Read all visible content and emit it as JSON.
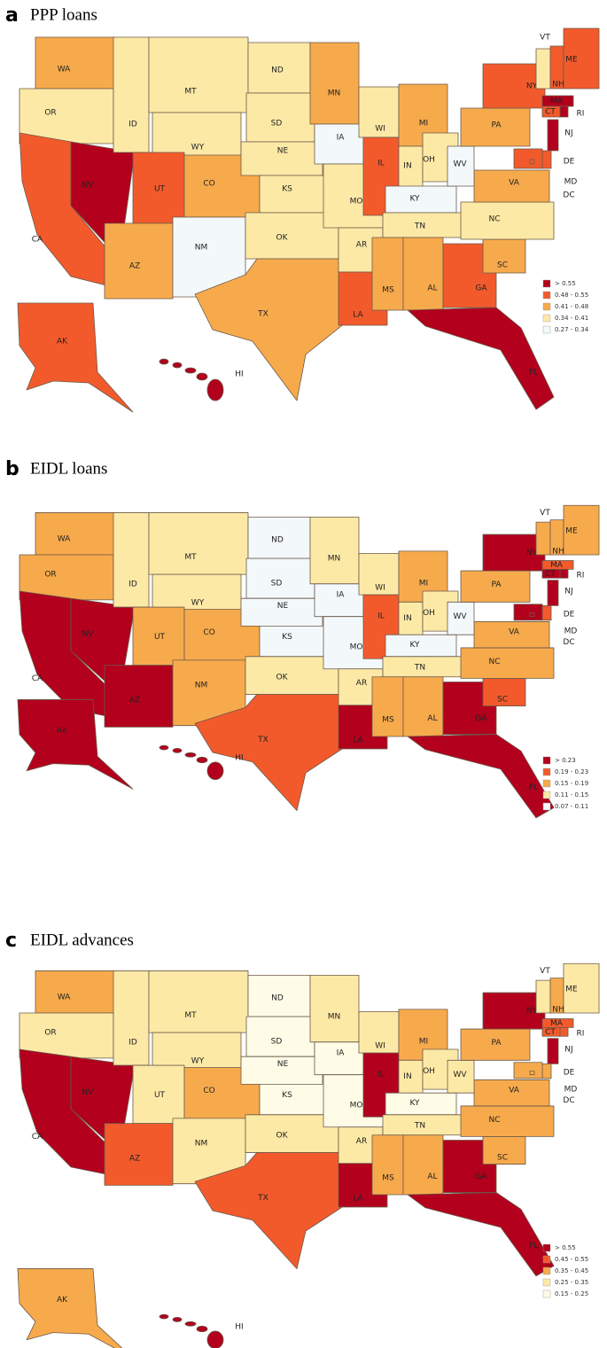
{
  "panels": [
    {
      "letter": "a",
      "title": "PPP loans",
      "legend": [
        {
          "label": "> 0.55",
          "color": "#b2001d"
        },
        {
          "label": "0.48 - 0.55",
          "color": "#f25a2c"
        },
        {
          "label": "0.41 - 0.48",
          "color": "#f7aa4c"
        },
        {
          "label": "0.34 - 0.41",
          "color": "#fde9a6"
        },
        {
          "label": "0.27 - 0.34",
          "color": "#f3f8fb"
        }
      ],
      "states": [
        {
          "label": "WA",
          "color": "#f7aa4c"
        },
        {
          "label": "OR",
          "color": "#fde9a6"
        },
        {
          "label": "CA",
          "color": "#f25a2c"
        },
        {
          "label": "NV",
          "color": "#b2001d"
        },
        {
          "label": "ID",
          "color": "#fde9a6"
        },
        {
          "label": "MT",
          "color": "#fde9a6"
        },
        {
          "label": "WY",
          "color": "#fde9a6"
        },
        {
          "label": "UT",
          "color": "#f25a2c"
        },
        {
          "label": "CO",
          "color": "#f7aa4c"
        },
        {
          "label": "AZ",
          "color": "#f7aa4c"
        },
        {
          "label": "NM",
          "color": "#f3f8fb"
        },
        {
          "label": "ND",
          "color": "#fde9a6"
        },
        {
          "label": "SD",
          "color": "#fde9a6"
        },
        {
          "label": "NE",
          "color": "#fde9a6"
        },
        {
          "label": "KS",
          "color": "#fde9a6"
        },
        {
          "label": "OK",
          "color": "#fde9a6"
        },
        {
          "label": "TX",
          "color": "#f7aa4c"
        },
        {
          "label": "MN",
          "color": "#f7aa4c"
        },
        {
          "label": "IA",
          "color": "#f3f8fb"
        },
        {
          "label": "MO",
          "color": "#fde9a6"
        },
        {
          "label": "AR",
          "color": "#fde9a6"
        },
        {
          "label": "LA",
          "color": "#f25a2c"
        },
        {
          "label": "WI",
          "color": "#fde9a6"
        },
        {
          "label": "IL",
          "color": "#f25a2c"
        },
        {
          "label": "MI",
          "color": "#f7aa4c"
        },
        {
          "label": "IN",
          "color": "#fde9a6"
        },
        {
          "label": "OH",
          "color": "#fde9a6"
        },
        {
          "label": "KY",
          "color": "#f3f8fb"
        },
        {
          "label": "TN",
          "color": "#fde9a6"
        },
        {
          "label": "MS",
          "color": "#f7aa4c"
        },
        {
          "label": "AL",
          "color": "#f7aa4c"
        },
        {
          "label": "GA",
          "color": "#f25a2c"
        },
        {
          "label": "FL",
          "color": "#b2001d"
        },
        {
          "label": "SC",
          "color": "#f7aa4c"
        },
        {
          "label": "NC",
          "color": "#fde9a6"
        },
        {
          "label": "VA",
          "color": "#f7aa4c"
        },
        {
          "label": "WV",
          "color": "#f3f8fb"
        },
        {
          "label": "PA",
          "color": "#f7aa4c"
        },
        {
          "label": "NY",
          "color": "#f25a2c"
        },
        {
          "label": "VT",
          "color": "#fde9a6"
        },
        {
          "label": "NH",
          "color": "#f25a2c"
        },
        {
          "label": "ME",
          "color": "#f25a2c"
        },
        {
          "label": "MA",
          "color": "#b2001d"
        },
        {
          "label": "CT",
          "color": "#f25a2c"
        },
        {
          "label": "RI",
          "color": "#b2001d"
        },
        {
          "label": "NJ",
          "color": "#b2001d"
        },
        {
          "label": "DE",
          "color": "#f25a2c"
        },
        {
          "label": "MD",
          "color": "#f25a2c"
        },
        {
          "label": "DC",
          "color": "#f25a2c"
        },
        {
          "label": "AK",
          "color": "#f25a2c"
        },
        {
          "label": "HI",
          "color": "#b2001d"
        }
      ]
    },
    {
      "letter": "b",
      "title": "EIDL loans",
      "legend": [
        {
          "label": "> 0.23",
          "color": "#b2001d"
        },
        {
          "label": "0.19 - 0.23",
          "color": "#f25a2c"
        },
        {
          "label": "0.15 - 0.19",
          "color": "#f7aa4c"
        },
        {
          "label": "0.11 - 0.15",
          "color": "#fde9a6"
        },
        {
          "label": "0.07 - 0.11",
          "color": "#f3f8fb"
        }
      ],
      "states": [
        {
          "label": "WA",
          "color": "#f7aa4c"
        },
        {
          "label": "OR",
          "color": "#f7aa4c"
        },
        {
          "label": "CA",
          "color": "#b2001d"
        },
        {
          "label": "NV",
          "color": "#b2001d"
        },
        {
          "label": "ID",
          "color": "#fde9a6"
        },
        {
          "label": "MT",
          "color": "#fde9a6"
        },
        {
          "label": "WY",
          "color": "#fde9a6"
        },
        {
          "label": "UT",
          "color": "#f7aa4c"
        },
        {
          "label": "CO",
          "color": "#f7aa4c"
        },
        {
          "label": "AZ",
          "color": "#b2001d"
        },
        {
          "label": "NM",
          "color": "#f7aa4c"
        },
        {
          "label": "ND",
          "color": "#f3f8fb"
        },
        {
          "label": "SD",
          "color": "#f3f8fb"
        },
        {
          "label": "NE",
          "color": "#f3f8fb"
        },
        {
          "label": "KS",
          "color": "#f3f8fb"
        },
        {
          "label": "OK",
          "color": "#fde9a6"
        },
        {
          "label": "TX",
          "color": "#f25a2c"
        },
        {
          "label": "MN",
          "color": "#fde9a6"
        },
        {
          "label": "IA",
          "color": "#f3f8fb"
        },
        {
          "label": "MO",
          "color": "#f3f8fb"
        },
        {
          "label": "AR",
          "color": "#fde9a6"
        },
        {
          "label": "LA",
          "color": "#b2001d"
        },
        {
          "label": "WI",
          "color": "#fde9a6"
        },
        {
          "label": "IL",
          "color": "#f25a2c"
        },
        {
          "label": "MI",
          "color": "#f7aa4c"
        },
        {
          "label": "IN",
          "color": "#fde9a6"
        },
        {
          "label": "OH",
          "color": "#fde9a6"
        },
        {
          "label": "KY",
          "color": "#f3f8fb"
        },
        {
          "label": "TN",
          "color": "#fde9a6"
        },
        {
          "label": "MS",
          "color": "#f7aa4c"
        },
        {
          "label": "AL",
          "color": "#f7aa4c"
        },
        {
          "label": "GA",
          "color": "#b2001d"
        },
        {
          "label": "FL",
          "color": "#b2001d"
        },
        {
          "label": "SC",
          "color": "#f25a2c"
        },
        {
          "label": "NC",
          "color": "#f7aa4c"
        },
        {
          "label": "VA",
          "color": "#f7aa4c"
        },
        {
          "label": "WV",
          "color": "#f3f8fb"
        },
        {
          "label": "PA",
          "color": "#f7aa4c"
        },
        {
          "label": "NY",
          "color": "#b2001d"
        },
        {
          "label": "VT",
          "color": "#f7aa4c"
        },
        {
          "label": "NH",
          "color": "#f7aa4c"
        },
        {
          "label": "ME",
          "color": "#f7aa4c"
        },
        {
          "label": "MA",
          "color": "#f25a2c"
        },
        {
          "label": "CT",
          "color": "#b2001d"
        },
        {
          "label": "RI",
          "color": "#b2001d"
        },
        {
          "label": "NJ",
          "color": "#b2001d"
        },
        {
          "label": "DE",
          "color": "#f25a2c"
        },
        {
          "label": "MD",
          "color": "#b2001d"
        },
        {
          "label": "DC",
          "color": "#b2001d"
        },
        {
          "label": "AK",
          "color": "#b2001d"
        },
        {
          "label": "HI",
          "color": "#b2001d"
        }
      ]
    },
    {
      "letter": "c",
      "title": "EIDL advances",
      "legend": [
        {
          "label": "> 0.55",
          "color": "#b2001d"
        },
        {
          "label": "0.45 - 0.55",
          "color": "#f25a2c"
        },
        {
          "label": "0.35 - 0.45",
          "color": "#f7aa4c"
        },
        {
          "label": "0.25 - 0.35",
          "color": "#fde9a6"
        },
        {
          "label": "0.15 - 0.25",
          "color": "#fefbe6"
        }
      ],
      "states": [
        {
          "label": "WA",
          "color": "#f7aa4c"
        },
        {
          "label": "OR",
          "color": "#fde9a6"
        },
        {
          "label": "CA",
          "color": "#b2001d"
        },
        {
          "label": "NV",
          "color": "#b2001d"
        },
        {
          "label": "ID",
          "color": "#fde9a6"
        },
        {
          "label": "MT",
          "color": "#fde9a6"
        },
        {
          "label": "WY",
          "color": "#fde9a6"
        },
        {
          "label": "UT",
          "color": "#fde9a6"
        },
        {
          "label": "CO",
          "color": "#f7aa4c"
        },
        {
          "label": "AZ",
          "color": "#f25a2c"
        },
        {
          "label": "NM",
          "color": "#fde9a6"
        },
        {
          "label": "ND",
          "color": "#fefbe6"
        },
        {
          "label": "SD",
          "color": "#fefbe6"
        },
        {
          "label": "NE",
          "color": "#fefbe6"
        },
        {
          "label": "KS",
          "color": "#fefbe6"
        },
        {
          "label": "OK",
          "color": "#fde9a6"
        },
        {
          "label": "TX",
          "color": "#f25a2c"
        },
        {
          "label": "MN",
          "color": "#fde9a6"
        },
        {
          "label": "IA",
          "color": "#fefbe6"
        },
        {
          "label": "MO",
          "color": "#fefbe6"
        },
        {
          "label": "AR",
          "color": "#fde9a6"
        },
        {
          "label": "LA",
          "color": "#b2001d"
        },
        {
          "label": "WI",
          "color": "#fde9a6"
        },
        {
          "label": "IL",
          "color": "#b2001d"
        },
        {
          "label": "MI",
          "color": "#f7aa4c"
        },
        {
          "label": "IN",
          "color": "#fde9a6"
        },
        {
          "label": "OH",
          "color": "#fde9a6"
        },
        {
          "label": "KY",
          "color": "#fefbe6"
        },
        {
          "label": "TN",
          "color": "#fde9a6"
        },
        {
          "label": "MS",
          "color": "#f7aa4c"
        },
        {
          "label": "AL",
          "color": "#f7aa4c"
        },
        {
          "label": "GA",
          "color": "#b2001d"
        },
        {
          "label": "FL",
          "color": "#b2001d"
        },
        {
          "label": "SC",
          "color": "#f7aa4c"
        },
        {
          "label": "NC",
          "color": "#f7aa4c"
        },
        {
          "label": "VA",
          "color": "#f7aa4c"
        },
        {
          "label": "WV",
          "color": "#fde9a6"
        },
        {
          "label": "PA",
          "color": "#f7aa4c"
        },
        {
          "label": "NY",
          "color": "#b2001d"
        },
        {
          "label": "VT",
          "color": "#fde9a6"
        },
        {
          "label": "NH",
          "color": "#f7aa4c"
        },
        {
          "label": "ME",
          "color": "#fde9a6"
        },
        {
          "label": "MA",
          "color": "#f25a2c"
        },
        {
          "label": "CT",
          "color": "#f25a2c"
        },
        {
          "label": "RI",
          "color": "#f25a2c"
        },
        {
          "label": "NJ",
          "color": "#b2001d"
        },
        {
          "label": "DE",
          "color": "#f7aa4c"
        },
        {
          "label": "MD",
          "color": "#f7aa4c"
        },
        {
          "label": "DC",
          "color": "#f7aa4c"
        },
        {
          "label": "AK",
          "color": "#f7aa4c"
        },
        {
          "label": "HI",
          "color": "#b2001d"
        }
      ]
    }
  ]
}
